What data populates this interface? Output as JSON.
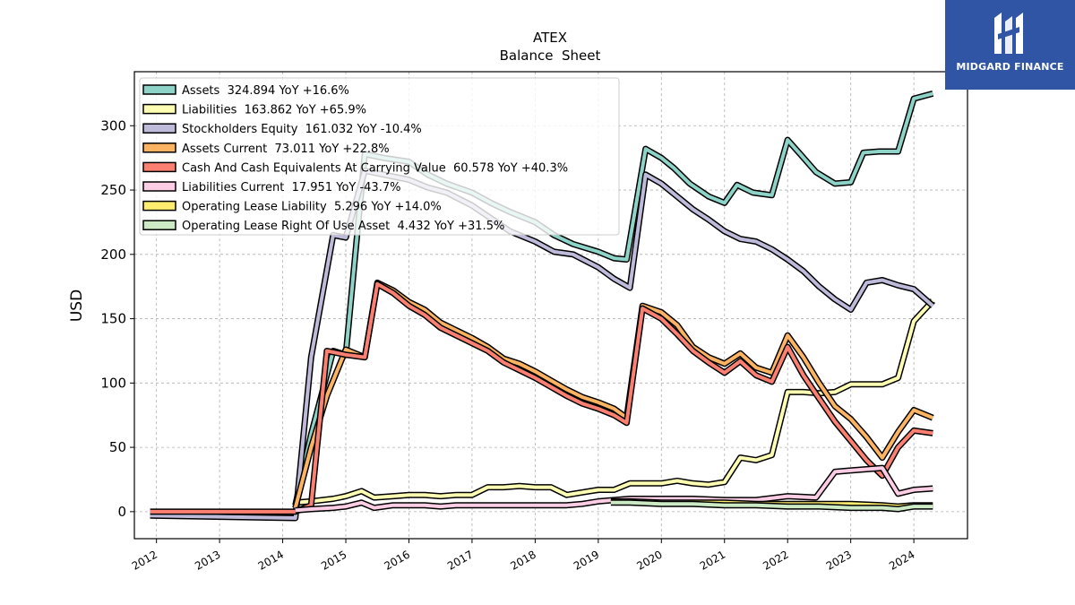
{
  "brand": {
    "name": "MIDGARD FINANCE",
    "color": "#2f55a4",
    "icon": "midgard-logo-icon"
  },
  "chart_data": {
    "type": "line",
    "title": "ATEX",
    "subtitle": "Balance  Sheet",
    "xlabel": "",
    "ylabel": "USD",
    "xlim": [
      2011.65,
      2024.85
    ],
    "ylim": [
      -21,
      342
    ],
    "x_ticks": [
      2012,
      2013,
      2014,
      2015,
      2016,
      2017,
      2018,
      2019,
      2020,
      2021,
      2022,
      2023,
      2024
    ],
    "y_ticks": [
      0,
      50,
      100,
      150,
      200,
      250,
      300
    ],
    "grid": true,
    "legend_position": "top-left",
    "series": [
      {
        "name": "Assets",
        "legend": "Assets  324.894 YoY +16.6%",
        "color": "#8dd3c7",
        "x": [
          2014.2,
          2014.45,
          2014.8,
          2015.0,
          2015.3,
          2015.6,
          2016.0,
          2016.3,
          2016.6,
          2017.0,
          2017.3,
          2017.6,
          2018.0,
          2018.3,
          2018.6,
          2019.0,
          2019.25,
          2019.45,
          2019.75,
          2020.0,
          2020.2,
          2020.45,
          2020.75,
          2021.0,
          2021.2,
          2021.45,
          2021.75,
          2022.0,
          2022.2,
          2022.45,
          2022.75,
          2023.0,
          2023.2,
          2023.45,
          2023.75,
          2024.0,
          2024.3
        ],
        "y": [
          5,
          60,
          125,
          122,
          278,
          275,
          272,
          262,
          255,
          248,
          240,
          233,
          225,
          215,
          208,
          202,
          197,
          196,
          282,
          275,
          267,
          255,
          245,
          240,
          254,
          248,
          246,
          289,
          278,
          264,
          255,
          256,
          279,
          280,
          280,
          321,
          325
        ]
      },
      {
        "name": "Liabilities",
        "legend": "Liabilities  163.862 YoY +65.9%",
        "color": "#ffffb3",
        "x": [
          2014.2,
          2014.45,
          2014.8,
          2015.0,
          2015.25,
          2015.45,
          2015.75,
          2016.0,
          2016.25,
          2016.5,
          2016.75,
          2017.0,
          2017.25,
          2017.5,
          2017.75,
          2018.0,
          2018.25,
          2018.5,
          2018.75,
          2019.0,
          2019.25,
          2019.5,
          2019.75,
          2020.0,
          2020.25,
          2020.5,
          2020.75,
          2021.0,
          2021.25,
          2021.5,
          2021.75,
          2022.0,
          2022.25,
          2022.5,
          2022.75,
          2023.0,
          2023.25,
          2023.5,
          2023.75,
          2024.0,
          2024.3
        ],
        "y": [
          7,
          8,
          10,
          12,
          16,
          11,
          12,
          13,
          13,
          12,
          13,
          13,
          19,
          19,
          20,
          19,
          19,
          13,
          15,
          17,
          17,
          22,
          22,
          22,
          24,
          22,
          21,
          23,
          42,
          40,
          44,
          93,
          93,
          92,
          93,
          99,
          99,
          99,
          104,
          148,
          164
        ]
      },
      {
        "name": "Stockholders Equity",
        "legend": "Stockholders Equity  161.032 YoY -10.4%",
        "color": "#bebada",
        "x": [
          2011.9,
          2014.2,
          2014.45,
          2014.8,
          2015.0,
          2015.3,
          2015.6,
          2016.0,
          2016.3,
          2016.6,
          2017.0,
          2017.3,
          2017.6,
          2018.0,
          2018.3,
          2018.6,
          2019.0,
          2019.25,
          2019.5,
          2019.75,
          2020.0,
          2020.25,
          2020.5,
          2020.75,
          2021.0,
          2021.25,
          2021.5,
          2021.75,
          2022.0,
          2022.25,
          2022.5,
          2022.75,
          2023.0,
          2023.25,
          2023.5,
          2023.75,
          2024.0,
          2024.3
        ],
        "y": [
          -3,
          -5,
          120,
          215,
          213,
          265,
          262,
          258,
          252,
          248,
          238,
          228,
          218,
          210,
          202,
          200,
          190,
          181,
          174,
          262,
          255,
          245,
          235,
          227,
          218,
          212,
          210,
          204,
          196,
          187,
          175,
          165,
          157,
          178,
          180,
          176,
          173,
          160
        ]
      },
      {
        "name": "Assets Current",
        "legend": "Assets Current  73.011 YoY +22.8%",
        "color": "#fdb462",
        "x": [
          2014.2,
          2014.45,
          2014.7,
          2015.0,
          2015.3,
          2015.5,
          2015.75,
          2016.0,
          2016.25,
          2016.5,
          2016.75,
          2017.0,
          2017.25,
          2017.5,
          2017.75,
          2018.0,
          2018.25,
          2018.5,
          2018.75,
          2019.0,
          2019.25,
          2019.45,
          2019.7,
          2020.0,
          2020.25,
          2020.5,
          2020.75,
          2021.0,
          2021.25,
          2021.5,
          2021.75,
          2022.0,
          2022.25,
          2022.5,
          2022.75,
          2023.0,
          2023.25,
          2023.5,
          2023.75,
          2024.0,
          2024.3
        ],
        "y": [
          3,
          50,
          90,
          126,
          120,
          178,
          172,
          163,
          157,
          147,
          141,
          135,
          128,
          119,
          115,
          109,
          102,
          95,
          89,
          85,
          80,
          73,
          160,
          155,
          145,
          128,
          120,
          115,
          123,
          112,
          108,
          137,
          120,
          100,
          82,
          72,
          58,
          42,
          62,
          79,
          73
        ]
      },
      {
        "name": "Cash And Cash Equivalents At Carrying Value",
        "legend": "Cash And Cash Equivalents At Carrying Value  60.578 YoY +40.3%",
        "color": "#fb8072",
        "x": [
          2011.9,
          2014.2,
          2014.45,
          2014.7,
          2015.0,
          2015.3,
          2015.5,
          2015.75,
          2016.0,
          2016.25,
          2016.5,
          2016.75,
          2017.0,
          2017.25,
          2017.5,
          2017.75,
          2018.0,
          2018.25,
          2018.5,
          2018.75,
          2019.0,
          2019.25,
          2019.45,
          2019.7,
          2020.0,
          2020.25,
          2020.5,
          2020.75,
          2021.0,
          2021.25,
          2021.5,
          2021.75,
          2022.0,
          2022.25,
          2022.5,
          2022.75,
          2023.0,
          2023.25,
          2023.5,
          2023.75,
          2024.0,
          2024.3
        ],
        "y": [
          0,
          0,
          5,
          125,
          122,
          120,
          177,
          170,
          160,
          153,
          143,
          137,
          131,
          125,
          116,
          110,
          104,
          97,
          90,
          84,
          80,
          75,
          69,
          158,
          150,
          138,
          125,
          116,
          108,
          117,
          106,
          101,
          128,
          106,
          88,
          70,
          55,
          40,
          28,
          50,
          63,
          61
        ]
      },
      {
        "name": "Liabilities Current",
        "legend": "Liabilities Current  17.951 YoY -43.7%",
        "color": "#fccde5",
        "x": [
          2014.2,
          2014.45,
          2014.8,
          2015.0,
          2015.25,
          2015.45,
          2015.75,
          2016.0,
          2016.25,
          2016.5,
          2016.75,
          2017.0,
          2017.25,
          2017.5,
          2017.75,
          2018.0,
          2018.25,
          2018.5,
          2018.75,
          2019.0,
          2019.25,
          2019.5,
          2019.75,
          2020.0,
          2020.5,
          2021.0,
          2021.5,
          2022.0,
          2022.45,
          2022.75,
          2023.0,
          2023.25,
          2023.5,
          2023.75,
          2024.0,
          2024.3
        ],
        "y": [
          1,
          2,
          3,
          4,
          7,
          3,
          5,
          5,
          5,
          4,
          5,
          5,
          5,
          5,
          5,
          5,
          5,
          5,
          6,
          8,
          9,
          10,
          10,
          10,
          10,
          9,
          9,
          12,
          11,
          31,
          32,
          33,
          34,
          14,
          17,
          18
        ]
      },
      {
        "name": "Operating Lease Liability",
        "legend": "Operating Lease Liability  5.296 YoY +14.0%",
        "color": "#ffed6f",
        "x": [
          2019.2,
          2019.5,
          2020.0,
          2020.5,
          2021.0,
          2021.5,
          2022.0,
          2022.5,
          2023.0,
          2023.5,
          2023.75,
          2024.0,
          2024.3
        ],
        "y": [
          8,
          8,
          7,
          7,
          7,
          6,
          6,
          6,
          6,
          5,
          4,
          5,
          5
        ]
      },
      {
        "name": "Operating Lease Right Of Use Asset",
        "legend": "Operating Lease Right Of Use Asset  4.432 YoY +31.5%",
        "color": "#ccebc5",
        "x": [
          2019.2,
          2019.5,
          2020.0,
          2020.5,
          2021.0,
          2021.5,
          2022.0,
          2022.5,
          2023.0,
          2023.5,
          2023.75,
          2024.0,
          2024.3
        ],
        "y": [
          7,
          7,
          6,
          6,
          5,
          5,
          4,
          4,
          3,
          3,
          2,
          4,
          4
        ]
      }
    ]
  }
}
